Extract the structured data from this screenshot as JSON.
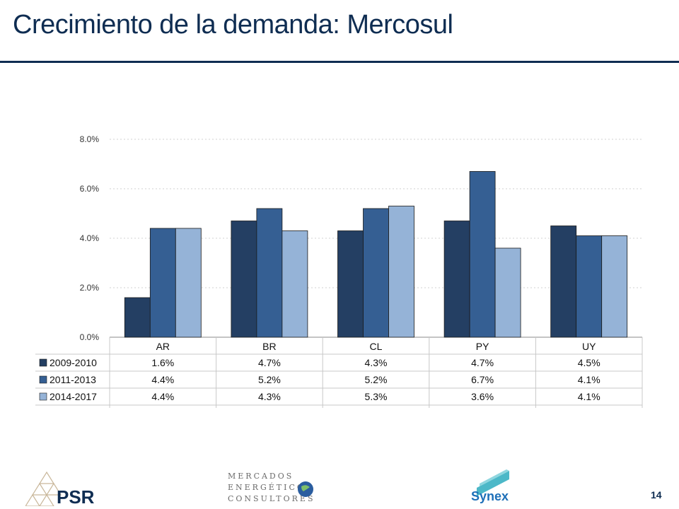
{
  "slide": {
    "title": "Crecimiento de la demanda: Mercosul",
    "page_number": "14"
  },
  "footer": {
    "psr_label": "PSR",
    "mercados_lines": [
      "MERCADOS",
      "ENERGÉTICOS",
      "CONSULTORES"
    ],
    "synex_label": "Synex"
  },
  "colors": {
    "title": "#0f2d52",
    "series": [
      "#243f63",
      "#355f93",
      "#95b3d7"
    ],
    "grid": "#d0d0d0"
  },
  "chart_data": {
    "type": "bar",
    "categories": [
      "AR",
      "BR",
      "CL",
      "PY",
      "UY"
    ],
    "series": [
      {
        "name": "2009-2010",
        "values": [
          1.6,
          4.7,
          4.3,
          4.7,
          4.5
        ],
        "labels": [
          "1.6%",
          "4.7%",
          "4.3%",
          "4.7%",
          "4.5%"
        ]
      },
      {
        "name": "2011-2013",
        "values": [
          4.4,
          5.2,
          5.2,
          6.7,
          4.1
        ],
        "labels": [
          "4.4%",
          "5.2%",
          "5.2%",
          "6.7%",
          "4.1%"
        ]
      },
      {
        "name": "2014-2017",
        "values": [
          4.4,
          4.3,
          5.3,
          3.6,
          4.1
        ],
        "labels": [
          "4.4%",
          "4.3%",
          "5.3%",
          "3.6%",
          "4.1%"
        ]
      }
    ],
    "y_ticks": [
      "8.0%",
      "6.0%",
      "4.0%",
      "2.0%",
      "0.0%"
    ],
    "ylim": [
      0,
      8
    ],
    "grid": true,
    "legend": "data-table-below"
  }
}
